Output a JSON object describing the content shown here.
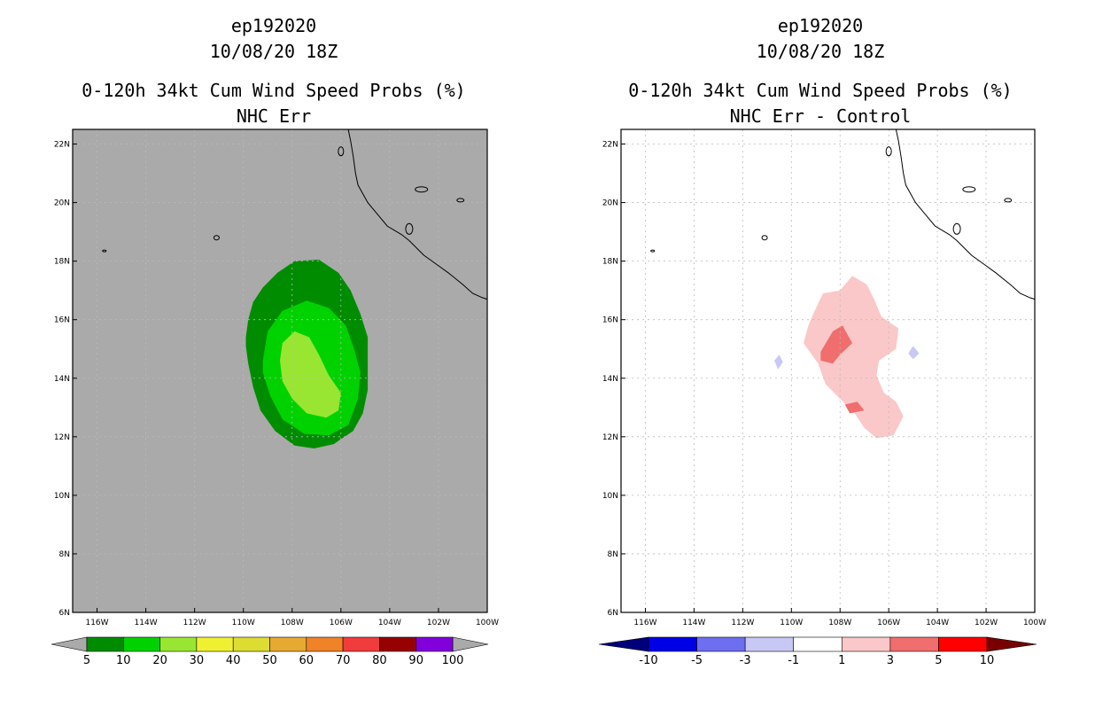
{
  "chart_data": [
    {
      "type": "heatmap",
      "title": [
        "ep192020",
        "10/08/20 18Z",
        "0-120h 34kt Cum Wind Speed Probs (%)",
        "NHC Err"
      ],
      "xlim": [
        -117,
        -100
      ],
      "ylim": [
        6,
        22.5
      ],
      "xticks": [
        -116,
        -114,
        -112,
        -110,
        -108,
        -106,
        -104,
        -102,
        -100
      ],
      "xtick_labels": [
        "116W",
        "114W",
        "112W",
        "110W",
        "108W",
        "106W",
        "104W",
        "102W",
        "100W"
      ],
      "yticks": [
        6,
        8,
        10,
        12,
        14,
        16,
        18,
        20,
        22
      ],
      "ytick_labels": [
        "6N",
        "8N",
        "10N",
        "12N",
        "14N",
        "16N",
        "18N",
        "20N",
        "22N"
      ],
      "background": "#aaaaaa",
      "grid": true,
      "colorbar": {
        "labels": [
          "5",
          "10",
          "20",
          "30",
          "40",
          "50",
          "60",
          "70",
          "80",
          "90",
          "100"
        ],
        "colors": [
          "#008c00",
          "#00d200",
          "#99e632",
          "#f0f032",
          "#dcdc32",
          "#e6aa32",
          "#f08228",
          "#f03c3c",
          "#960000",
          "#8200dc"
        ],
        "under_color": "#aaaaaa",
        "over_color": "#aaaaaa"
      },
      "contours": [
        {
          "level": "5-10",
          "color": "#008c00",
          "points": [
            [
              -109.9,
              15.4
            ],
            [
              -109.8,
              16.0
            ],
            [
              -109.6,
              16.6
            ],
            [
              -109.2,
              17.1
            ],
            [
              -108.6,
              17.6
            ],
            [
              -107.9,
              18.0
            ],
            [
              -106.9,
              18.05
            ],
            [
              -106.1,
              17.6
            ],
            [
              -105.6,
              17.0
            ],
            [
              -105.2,
              16.2
            ],
            [
              -104.9,
              15.4
            ],
            [
              -104.9,
              14.6
            ],
            [
              -104.9,
              13.6
            ],
            [
              -105.1,
              12.8
            ],
            [
              -105.5,
              12.2
            ],
            [
              -106.3,
              11.75
            ],
            [
              -107.1,
              11.6
            ],
            [
              -107.9,
              11.7
            ],
            [
              -108.7,
              12.2
            ],
            [
              -109.3,
              12.9
            ],
            [
              -109.6,
              13.7
            ],
            [
              -109.8,
              14.5
            ],
            [
              -109.9,
              15.1
            ]
          ]
        },
        {
          "level": "10-20",
          "color": "#00d200",
          "points": [
            [
              -109.2,
              14.6
            ],
            [
              -109.0,
              15.6
            ],
            [
              -108.4,
              16.3
            ],
            [
              -107.4,
              16.65
            ],
            [
              -106.5,
              16.4
            ],
            [
              -105.8,
              15.8
            ],
            [
              -105.5,
              15.1
            ],
            [
              -105.2,
              14.2
            ],
            [
              -105.3,
              13.3
            ],
            [
              -105.7,
              12.4
            ],
            [
              -106.5,
              12.05
            ],
            [
              -107.5,
              12.1
            ],
            [
              -108.4,
              12.6
            ],
            [
              -108.9,
              13.4
            ],
            [
              -109.2,
              14.2
            ]
          ]
        },
        {
          "level": "20-30",
          "color": "#99e632",
          "points": [
            [
              -108.5,
              14.6
            ],
            [
              -108.4,
              15.2
            ],
            [
              -107.9,
              15.6
            ],
            [
              -107.3,
              15.4
            ],
            [
              -106.9,
              14.8
            ],
            [
              -106.5,
              14.1
            ],
            [
              -106.0,
              13.5
            ],
            [
              -106.1,
              12.9
            ],
            [
              -106.6,
              12.65
            ],
            [
              -107.4,
              12.8
            ],
            [
              -108.0,
              13.3
            ],
            [
              -108.4,
              13.9
            ]
          ]
        }
      ],
      "coastline": [
        [
          -105.7,
          22.5
        ],
        [
          -105.6,
          22.1
        ],
        [
          -105.5,
          21.6
        ],
        [
          -105.4,
          21.0
        ],
        [
          -105.3,
          20.6
        ],
        [
          -104.9,
          20.0
        ],
        [
          -104.5,
          19.6
        ],
        [
          -104.1,
          19.2
        ],
        [
          -103.5,
          18.9
        ],
        [
          -103.2,
          18.7
        ],
        [
          -102.6,
          18.2
        ],
        [
          -102.1,
          17.9
        ],
        [
          -101.6,
          17.6
        ],
        [
          -101.0,
          17.2
        ],
        [
          -100.6,
          16.9
        ],
        [
          -100.2,
          16.75
        ],
        [
          -100.0,
          16.7
        ]
      ]
    },
    {
      "type": "heatmap",
      "title": [
        "ep192020",
        "10/08/20 18Z",
        "0-120h 34kt Cum Wind Speed Probs (%)",
        "NHC Err - Control"
      ],
      "xlim": [
        -117,
        -100
      ],
      "ylim": [
        6,
        22.5
      ],
      "xticks": [
        -116,
        -114,
        -112,
        -110,
        -108,
        -106,
        -104,
        -102,
        -100
      ],
      "xtick_labels": [
        "116W",
        "114W",
        "112W",
        "110W",
        "108W",
        "106W",
        "104W",
        "102W",
        "100W"
      ],
      "yticks": [
        6,
        8,
        10,
        12,
        14,
        16,
        18,
        20,
        22
      ],
      "ytick_labels": [
        "6N",
        "8N",
        "10N",
        "12N",
        "14N",
        "16N",
        "18N",
        "20N",
        "22N"
      ],
      "background": "#ffffff",
      "grid": true,
      "colorbar": {
        "labels": [
          "-10",
          "-5",
          "-3",
          "-1",
          "1",
          "3",
          "5",
          "10"
        ],
        "colors": [
          "#0000e6",
          "#6e6ef0",
          "#c8c8f5",
          "#ffffff",
          "#fac8c8",
          "#f06e6e",
          "#ff0000"
        ],
        "under_color": "#00007a",
        "over_color": "#780000"
      },
      "contours": [
        {
          "level": "1-3",
          "color": "#fac8c8",
          "points": [
            [
              -109.1,
              16.2
            ],
            [
              -108.7,
              16.9
            ],
            [
              -108.0,
              17.0
            ],
            [
              -107.5,
              17.5
            ],
            [
              -106.9,
              17.2
            ],
            [
              -106.6,
              16.7
            ],
            [
              -106.3,
              16.1
            ],
            [
              -105.6,
              15.7
            ],
            [
              -105.7,
              15.0
            ],
            [
              -106.4,
              14.6
            ],
            [
              -106.5,
              14.1
            ],
            [
              -106.2,
              13.5
            ],
            [
              -105.7,
              13.2
            ],
            [
              -105.4,
              12.7
            ],
            [
              -105.8,
              12.05
            ],
            [
              -106.5,
              11.95
            ],
            [
              -107.0,
              12.3
            ],
            [
              -107.4,
              12.8
            ],
            [
              -108.0,
              13.3
            ],
            [
              -108.6,
              13.8
            ],
            [
              -108.9,
              14.5
            ],
            [
              -109.5,
              15.2
            ],
            [
              -109.3,
              15.8
            ]
          ]
        },
        {
          "level": "3-5",
          "color": "#f06e6e",
          "points": [
            [
              -108.8,
              14.9
            ],
            [
              -108.3,
              15.6
            ],
            [
              -107.9,
              15.8
            ],
            [
              -107.5,
              15.2
            ],
            [
              -108.0,
              14.8
            ],
            [
              -108.3,
              14.5
            ],
            [
              -108.8,
              14.6
            ]
          ]
        },
        {
          "level": "3-5",
          "color": "#f06e6e",
          "points": [
            [
              -107.8,
              13.1
            ],
            [
              -107.3,
              13.2
            ],
            [
              -107.0,
              12.9
            ],
            [
              -107.6,
              12.8
            ]
          ]
        },
        {
          "level": "-3--1",
          "color": "#c8c8f5",
          "points": [
            [
              -110.7,
              14.6
            ],
            [
              -110.5,
              14.8
            ],
            [
              -110.35,
              14.55
            ],
            [
              -110.55,
              14.3
            ]
          ]
        },
        {
          "level": "-3--1",
          "color": "#c8c8f5",
          "points": [
            [
              -105.0,
              15.1
            ],
            [
              -104.75,
              14.85
            ],
            [
              -105.0,
              14.65
            ],
            [
              -105.2,
              14.85
            ]
          ]
        }
      ],
      "coastline": [
        [
          -105.7,
          22.5
        ],
        [
          -105.6,
          22.1
        ],
        [
          -105.5,
          21.6
        ],
        [
          -105.4,
          21.0
        ],
        [
          -105.3,
          20.6
        ],
        [
          -104.9,
          20.0
        ],
        [
          -104.5,
          19.6
        ],
        [
          -104.1,
          19.2
        ],
        [
          -103.5,
          18.9
        ],
        [
          -103.2,
          18.7
        ],
        [
          -102.6,
          18.2
        ],
        [
          -102.1,
          17.9
        ],
        [
          -101.6,
          17.6
        ],
        [
          -101.0,
          17.2
        ],
        [
          -100.6,
          16.9
        ],
        [
          -100.2,
          16.75
        ],
        [
          -100.0,
          16.7
        ]
      ]
    }
  ]
}
